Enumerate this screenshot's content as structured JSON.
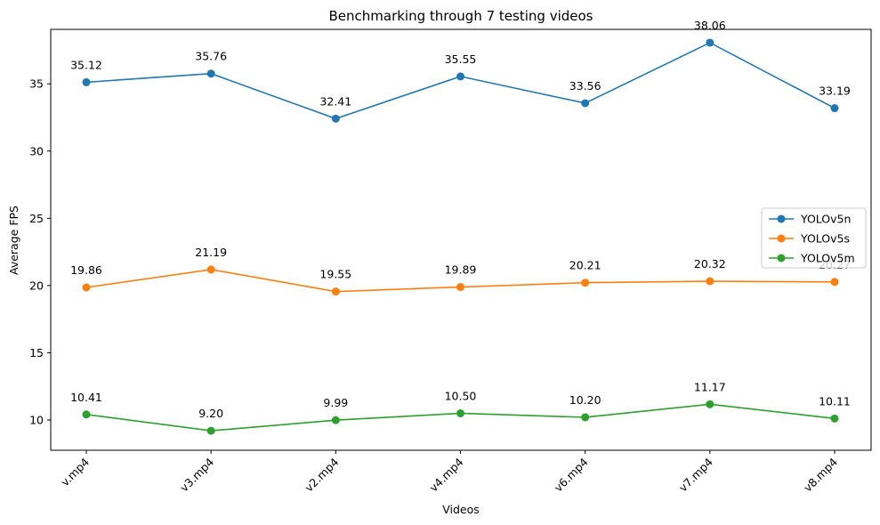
{
  "chart_data": {
    "type": "line",
    "title": "Benchmarking through 7 testing videos",
    "xlabel": "Videos",
    "ylabel": "Average FPS",
    "categories": [
      "v.mp4",
      "v3.mp4",
      "v2.mp4",
      "v4.mp4",
      "v6.mp4",
      "v7.mp4",
      "v8.mp4"
    ],
    "ylim": [
      7.75,
      39.05
    ],
    "yticks": [
      10,
      15,
      20,
      25,
      30,
      35
    ],
    "ytick_labels": [
      "10",
      "15",
      "20",
      "25",
      "30",
      "35"
    ],
    "grid": false,
    "legend_position": "center-right",
    "series": [
      {
        "name": "YOLOv5n",
        "color": "#1f77b4",
        "values": [
          35.12,
          35.76,
          32.41,
          35.55,
          33.56,
          38.06,
          33.19
        ],
        "labels": [
          "35.12",
          "35.76",
          "32.41",
          "35.55",
          "33.56",
          "38.06",
          "33.19"
        ]
      },
      {
        "name": "YOLOv5s",
        "color": "#ff7f0e",
        "values": [
          19.86,
          21.19,
          19.55,
          19.89,
          20.21,
          20.32,
          20.27
        ],
        "labels": [
          "19.86",
          "21.19",
          "19.55",
          "19.89",
          "20.21",
          "20.32",
          "20.27"
        ]
      },
      {
        "name": "YOLOv5m",
        "color": "#2ca02c",
        "values": [
          10.41,
          9.2,
          9.99,
          10.5,
          10.2,
          11.17,
          10.11
        ],
        "labels": [
          "10.41",
          "9.20",
          "9.99",
          "10.50",
          "10.20",
          "11.17",
          "10.11"
        ]
      }
    ]
  }
}
